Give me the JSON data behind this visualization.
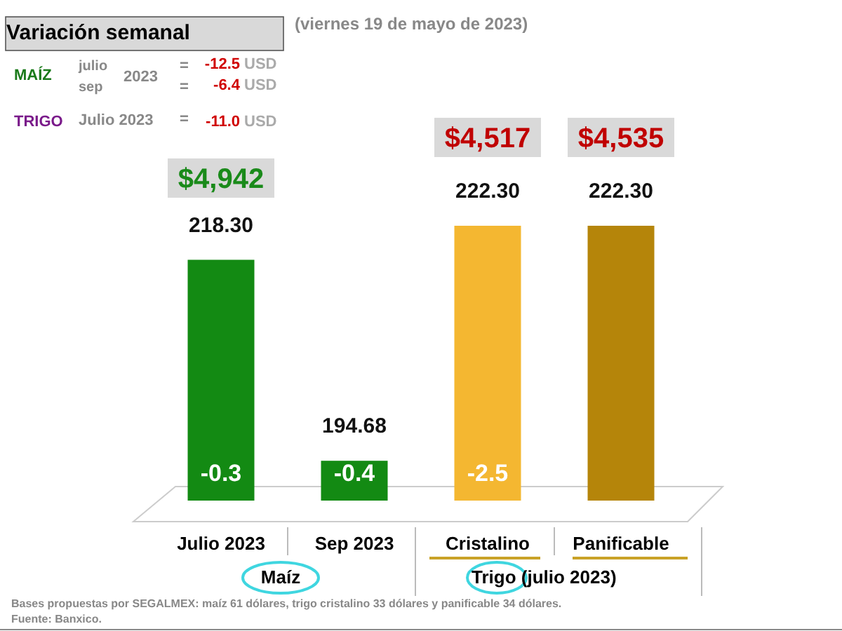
{
  "chart_data": {
    "type": "bar",
    "subtitle": "(viernes 19 de mayo de 2023)",
    "categories": [
      "Julio 2023",
      "Sep 2023",
      "Cristalino",
      "Panificable"
    ],
    "values": [
      218.3,
      194.68,
      222.3,
      222.3
    ],
    "value_labels": [
      "218.30",
      "194.68",
      "222.30",
      "222.30"
    ],
    "colors": [
      "#138a13",
      "#138a13",
      "#f4b731",
      "#b5850a"
    ],
    "ylim": [
      190,
      222.3
    ],
    "tick_labels": "x",
    "annotations": [
      "Variación semanal",
      "MAÍZ",
      "julio",
      "sep",
      "2023",
      "=",
      "-12.5",
      "USD",
      "=",
      "-6.4",
      "USD",
      "TRIGO",
      "Julio 2023",
      "=",
      "-11.0",
      "USD",
      "Maíz",
      "Trigo (julio 2023)",
      "Bases propuestas por SEGALMEX: maíz 61 dólares, trigo cristalino 33 dólares y panificable 34 dólares.",
      "Fuente: Banxico.",
      "$4,942",
      "$4,517",
      "$4,535",
      "-0.3",
      "-0.4",
      "-2.5"
    ]
  }
}
